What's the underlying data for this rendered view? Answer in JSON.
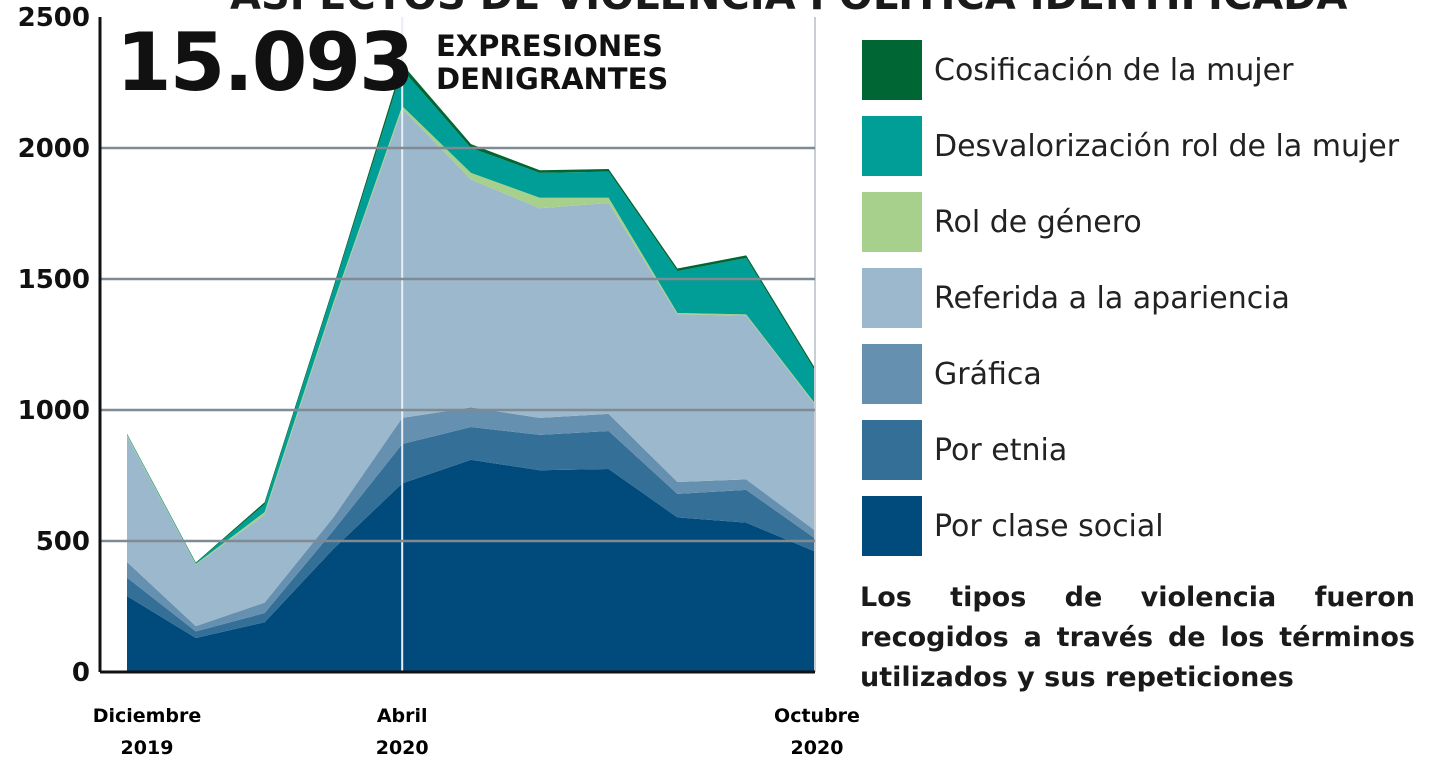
{
  "chart_data": {
    "type": "stacked_area",
    "title": "ASPECTOS DE VIOLENCIA POLÍTICA IDENTIFICADA",
    "annotation_number": "15.093",
    "annotation_text": "EXPRESIONES DENIGRANTES",
    "note": "Los tipos de violencia fueron recogidos a través de los términos utilizados y sus repeticiones",
    "categories": [
      "Diciembre 2019",
      null,
      null,
      null,
      "Abril 2020",
      null,
      null,
      null,
      null,
      null,
      "Octubre 2020"
    ],
    "series": [
      {
        "name": "Por clase social",
        "color": "#004a7c",
        "values": [
          290,
          130,
          190,
          470,
          720,
          810,
          770,
          775,
          590,
          570,
          460
        ]
      },
      {
        "name": "Por etnia",
        "color": "#336f96",
        "values": [
          70,
          25,
          35,
          70,
          150,
          125,
          135,
          145,
          90,
          125,
          50
        ]
      },
      {
        "name": "Gráfica",
        "color": "#6690b0",
        "values": [
          60,
          20,
          40,
          50,
          100,
          75,
          65,
          65,
          45,
          40,
          30
        ]
      },
      {
        "name": "Referida a la apariencia",
        "color": "#9bb8cc",
        "values": [
          480,
          235,
          335,
          810,
          1180,
          870,
          800,
          805,
          640,
          625,
          480
        ]
      },
      {
        "name": "Rol de género",
        "color": "#a8d08d",
        "values": [
          5,
          2,
          10,
          10,
          10,
          25,
          40,
          20,
          5,
          5,
          5
        ]
      },
      {
        "name": "Desvalorización rol de la mujer",
        "color": "#009e96",
        "values": [
          3,
          3,
          30,
          50,
          140,
          95,
          95,
          100,
          160,
          215,
          125
        ]
      },
      {
        "name": "Cosificación de la mujer",
        "color": "#006633",
        "values": [
          2,
          3,
          8,
          10,
          20,
          15,
          10,
          10,
          10,
          10,
          10
        ]
      }
    ],
    "ylim": [
      0,
      2500
    ],
    "yticks": [
      0,
      500,
      1000,
      1500,
      2000,
      2500
    ],
    "grid": true
  }
}
